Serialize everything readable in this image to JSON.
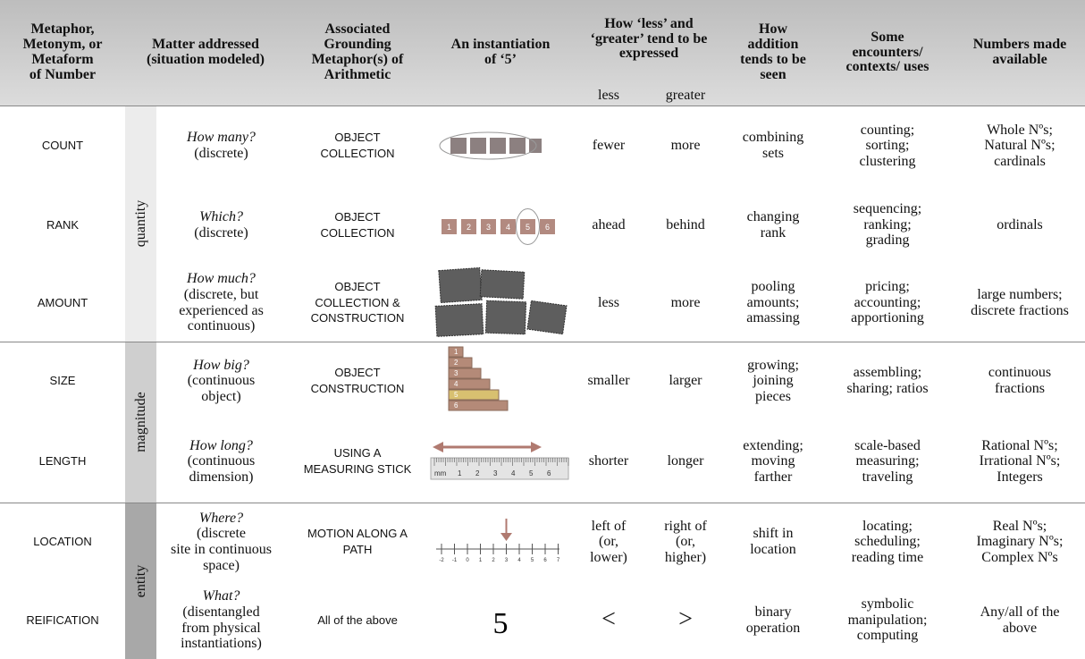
{
  "header": {
    "columns": [
      [
        "Metaphor,",
        "Metonym, or",
        "Metaform",
        "of Number"
      ],
      [
        "Matter addressed",
        "(situation modeled)"
      ],
      [
        "Associated",
        "Grounding",
        "Metaphor(s) of",
        "Arithmetic"
      ],
      [
        "An instantiation",
        "of ‘5’"
      ],
      [
        "How ‘less’ and",
        "‘greater’ tend to be",
        "expressed"
      ],
      [
        "How",
        "addition",
        "tends to be",
        "seen"
      ],
      [
        "Some",
        "encounters/",
        "contexts/ uses"
      ],
      [
        "Numbers made",
        "available"
      ]
    ],
    "less": "less",
    "greater": "greater"
  },
  "groups": [
    "quantity",
    "magnitude",
    "entity"
  ],
  "rows": [
    {
      "name": "COUNT",
      "question": "How many?",
      "detail": [
        "(discrete)"
      ],
      "grounding": [
        "OBJECT",
        "COLLECTION"
      ],
      "less": [
        "fewer"
      ],
      "greater": [
        "more"
      ],
      "addition": [
        "combining",
        "sets"
      ],
      "encounters": [
        "counting;",
        "sorting;",
        "clustering"
      ],
      "numbers": [
        "Whole Nºs;",
        "Natural Nºs;",
        "cardinals"
      ]
    },
    {
      "name": "RANK",
      "question": "Which?",
      "detail": [
        "(discrete)"
      ],
      "grounding": [
        "OBJECT",
        "COLLECTION"
      ],
      "instantiation_labels": [
        "1",
        "2",
        "3",
        "4",
        "5",
        "6"
      ],
      "less": [
        "ahead"
      ],
      "greater": [
        "behind"
      ],
      "addition": [
        "changing",
        "rank"
      ],
      "encounters": [
        "sequencing;",
        "ranking;",
        "grading"
      ],
      "numbers": [
        "ordinals"
      ]
    },
    {
      "name": "AMOUNT",
      "question": "How much?",
      "detail": [
        "(discrete, but",
        "experienced as",
        "continuous)"
      ],
      "grounding": [
        "OBJECT",
        "COLLECTION &",
        "CONSTRUCTION"
      ],
      "less": [
        "less"
      ],
      "greater": [
        "more"
      ],
      "addition": [
        "pooling",
        "amounts;",
        "amassing"
      ],
      "encounters": [
        "pricing;",
        "accounting;",
        "apportioning"
      ],
      "numbers": [
        "large numbers;",
        "discrete fractions"
      ]
    },
    {
      "name": "SIZE",
      "question": "How big?",
      "detail": [
        "(continuous",
        "object)"
      ],
      "grounding": [
        "OBJECT",
        "CONSTRUCTION"
      ],
      "instantiation_labels": [
        "1",
        "2",
        "3",
        "4",
        "5",
        "6"
      ],
      "less": [
        "smaller"
      ],
      "greater": [
        "larger"
      ],
      "addition": [
        "growing;",
        "joining",
        "pieces"
      ],
      "encounters": [
        "assembling;",
        "sharing; ratios"
      ],
      "numbers": [
        "continuous",
        "fractions"
      ]
    },
    {
      "name": "LENGTH",
      "question": "How long?",
      "detail": [
        "(continuous",
        "dimension)"
      ],
      "grounding": [
        "USING A",
        "MEASURING STICK"
      ],
      "instantiation_labels": [
        "mm",
        "1",
        "2",
        "3",
        "4",
        "5",
        "6"
      ],
      "less": [
        "shorter"
      ],
      "greater": [
        "longer"
      ],
      "addition": [
        "extending;",
        "moving",
        "farther"
      ],
      "encounters": [
        "scale-based",
        "measuring;",
        "traveling"
      ],
      "numbers": [
        "Rational Nºs;",
        "Irrational Nºs;",
        "Integers"
      ]
    },
    {
      "name": "LOCATION",
      "question": "Where?",
      "detail": [
        "(discrete",
        "site in continuous",
        "space)"
      ],
      "grounding": [
        "MOTION ALONG A",
        "PATH"
      ],
      "instantiation_labels": [
        "-2",
        "-1",
        "0",
        "1",
        "2",
        "3",
        "4",
        "5",
        "6",
        "7"
      ],
      "less": [
        "left of",
        "(or,",
        "lower)"
      ],
      "greater": [
        "right of",
        "(or,",
        "higher)"
      ],
      "addition": [
        "shift in",
        "location"
      ],
      "encounters": [
        "locating;",
        "scheduling;",
        "reading time"
      ],
      "numbers": [
        "Real Nºs;",
        "Imaginary Nºs;",
        "Complex Nºs"
      ]
    },
    {
      "name": "REIFICATION",
      "question": "What?",
      "detail": [
        "(disentangled",
        "from physical",
        "instantiations)"
      ],
      "grounding": [
        "All of the above"
      ],
      "instantiation_labels": [
        "5"
      ],
      "less": [
        "<"
      ],
      "greater": [
        ">"
      ],
      "addition": [
        "binary",
        "operation"
      ],
      "encounters": [
        "symbolic",
        "manipulation;",
        "computing"
      ],
      "numbers": [
        "Any/all of the",
        "above"
      ]
    }
  ]
}
